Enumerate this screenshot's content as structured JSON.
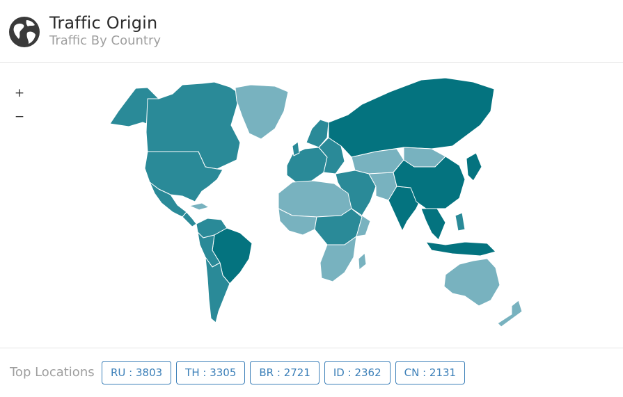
{
  "header": {
    "title": "Traffic Origin",
    "subtitle": "Traffic By Country"
  },
  "map": {
    "zoom_in_label": "+",
    "zoom_out_label": "−",
    "color_scale": [
      "#04737f",
      "#2a8a98",
      "#78b2bf",
      "#9ec9d2"
    ]
  },
  "footer": {
    "label": "Top Locations :",
    "locations": [
      {
        "label": "RU : 3803"
      },
      {
        "label": "TH : 3305"
      },
      {
        "label": "BR : 2721"
      },
      {
        "label": "ID : 2362"
      },
      {
        "label": "CN : 2131"
      }
    ]
  }
}
